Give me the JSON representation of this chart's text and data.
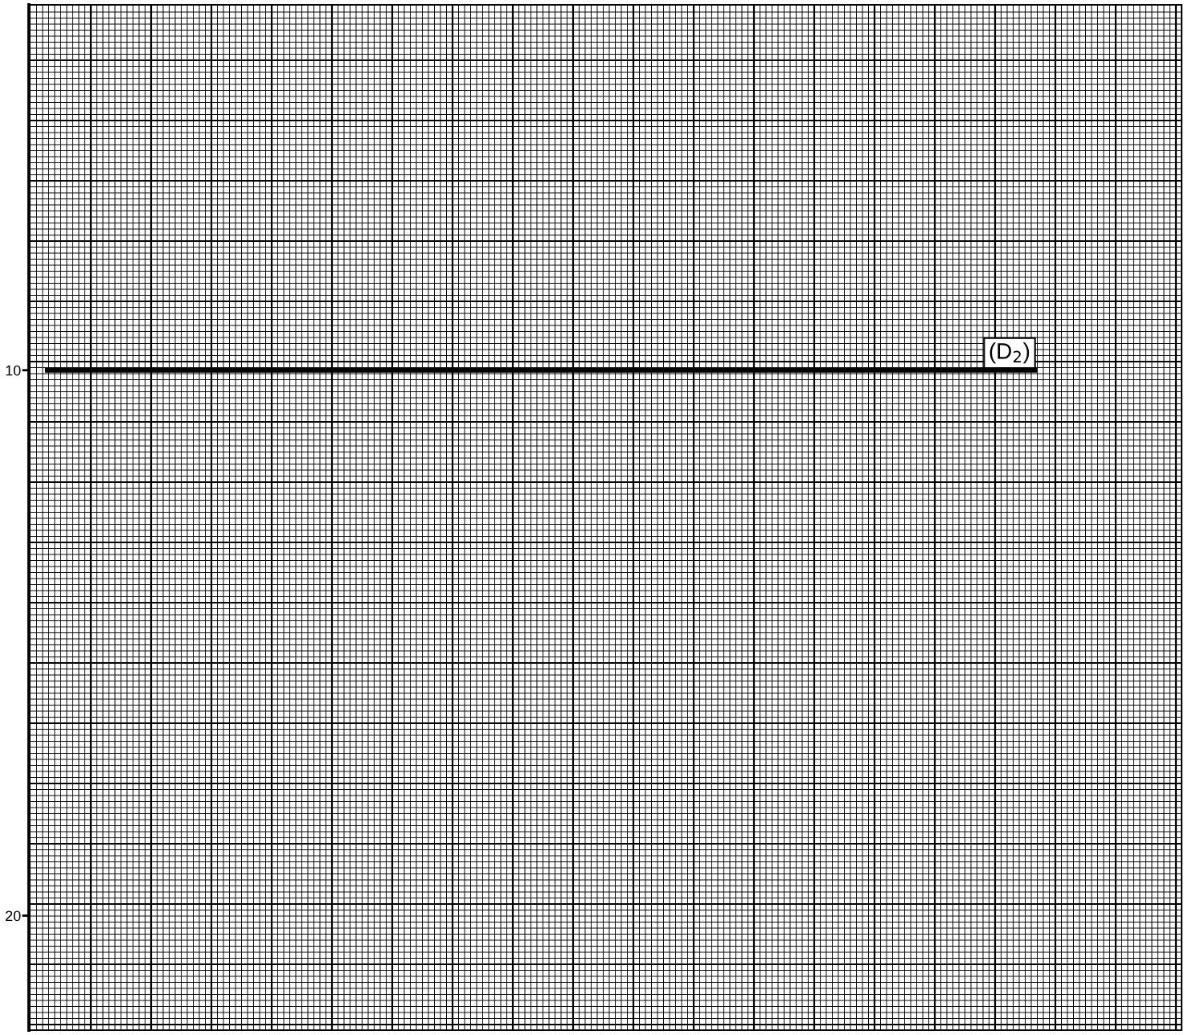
{
  "chart_data": {
    "type": "line",
    "categories": [
      null,
      null,
      null,
      null,
      null,
      null,
      null,
      null,
      null,
      null,
      null,
      null,
      null,
      null,
      null,
      null,
      null,
      null,
      null,
      null,
      null,
      null,
      null,
      null,
      null,
      null,
      null,
      null,
      null,
      null,
      null,
      null,
      null,
      null,
      null,
      null
    ],
    "series": [
      {
        "name": "(D$_{2}$)",
        "color": "#000000",
        "values": [
          10,
          10,
          10,
          10,
          10,
          10,
          10,
          10,
          10,
          10,
          10,
          10,
          10,
          10,
          10,
          10,
          10,
          10,
          10,
          10,
          10,
          10,
          10,
          10,
          10,
          10,
          10,
          10,
          10,
          10,
          10,
          10,
          null,
          null,
          null,
          null
        ]
      }
    ],
    "ylim": [
      22.1,
      3.3
    ],
    "yticks": [
      10,
      20
    ],
    "tick_labels": "y",
    "grid": true,
    "line_style": "solid",
    "marker": "none"
  }
}
